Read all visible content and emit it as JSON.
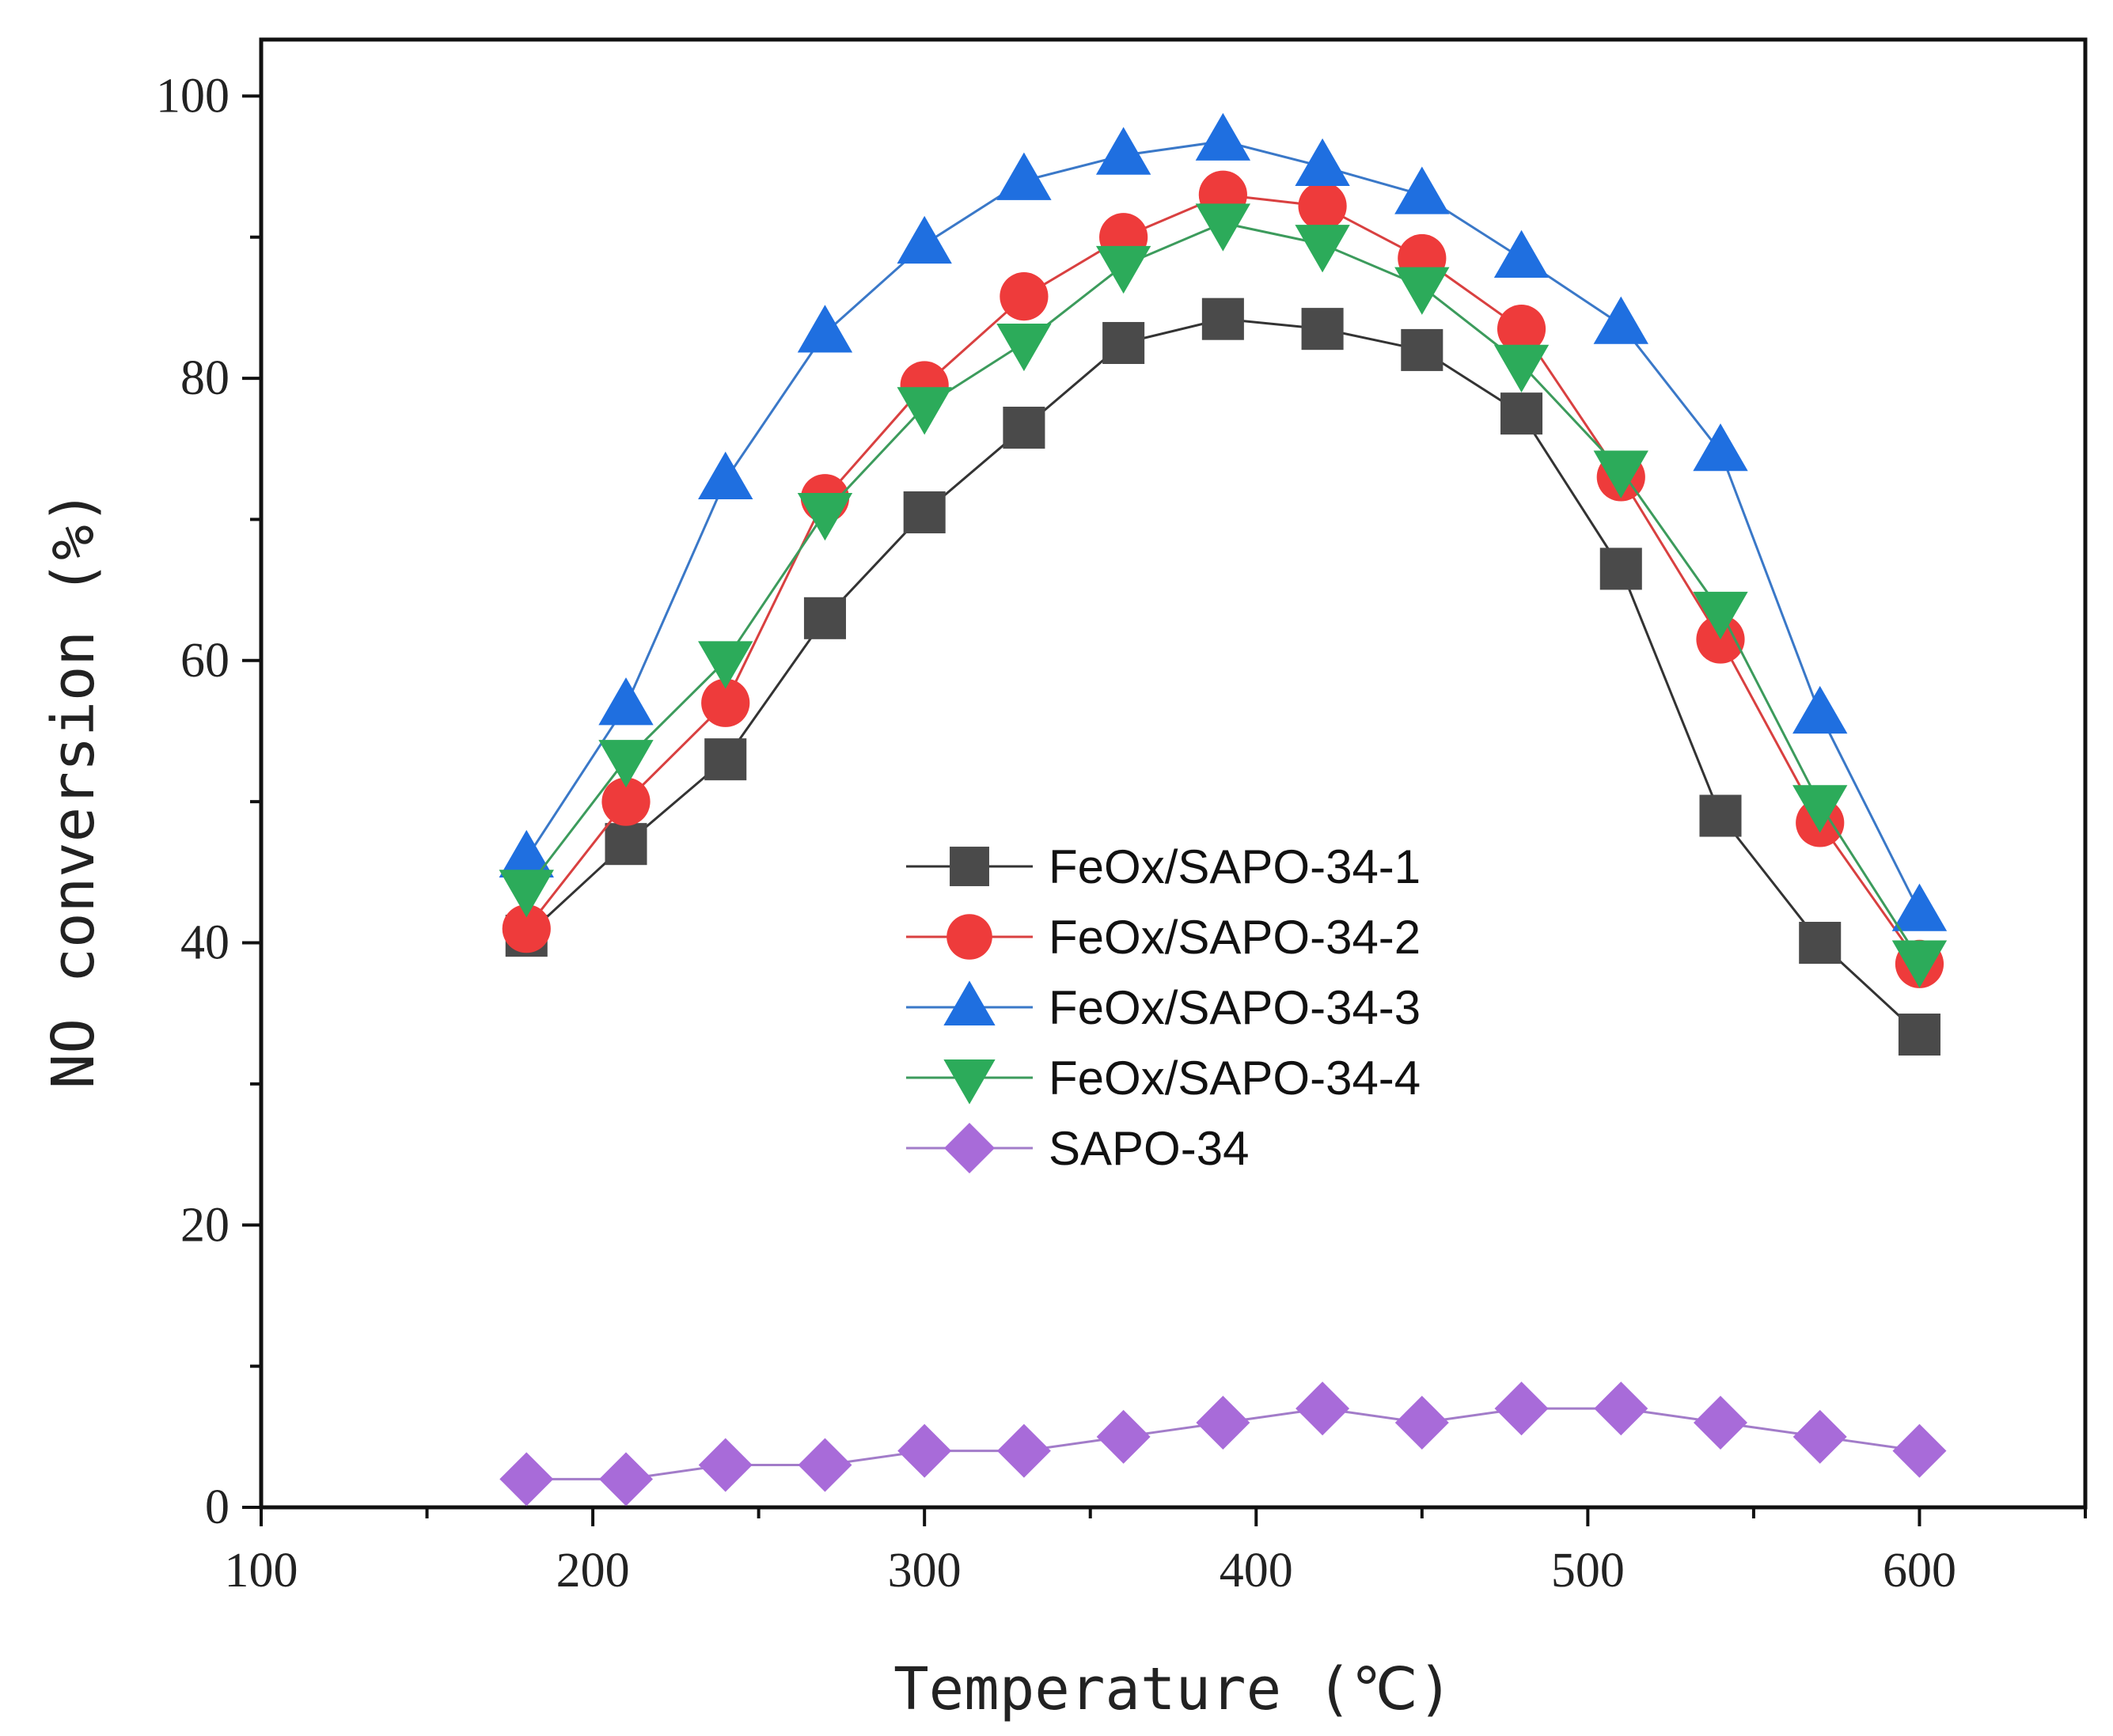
{
  "chart_data": {
    "type": "line",
    "xlabel": "Temperature (℃)",
    "ylabel": "NO conversion (%)",
    "xlim": [
      100,
      650
    ],
    "ylim": [
      0,
      104
    ],
    "xticks": [
      100,
      200,
      300,
      400,
      500,
      600
    ],
    "yticks": [
      0,
      20,
      40,
      60,
      80,
      100
    ],
    "x": [
      180,
      210,
      240,
      270,
      300,
      330,
      360,
      390,
      420,
      450,
      480,
      510,
      540,
      570,
      600
    ],
    "legend_position": "center",
    "series": [
      {
        "name": "FeOx/SAPO-34-1",
        "marker": "square",
        "marker_color": "#4a4a4a",
        "line_color": "#333333",
        "values": [
          40.5,
          47,
          53,
          63,
          70.5,
          76.5,
          82.5,
          84.2,
          83.5,
          82,
          77.5,
          66.5,
          49,
          40,
          33.5
        ]
      },
      {
        "name": "FeOx/SAPO-34-2",
        "marker": "circle",
        "marker_color": "#ee3b3b",
        "line_color": "#d94040",
        "values": [
          41,
          50,
          57,
          71.5,
          79.5,
          85.8,
          90,
          93,
          92.2,
          88.5,
          83.5,
          73,
          61.5,
          48.5,
          38.5
        ]
      },
      {
        "name": "FeOx/SAPO-34-3",
        "marker": "triangle-up",
        "marker_color": "#1f6fe0",
        "line_color": "#3a78c8",
        "values": [
          46,
          56.8,
          72.8,
          83.2,
          89.5,
          94,
          95.8,
          96.8,
          95,
          93,
          88.5,
          83.8,
          74.8,
          56.2,
          42.2
        ]
      },
      {
        "name": "FeOx/SAPO-34-4",
        "marker": "triangle-down",
        "marker_color": "#2cab5a",
        "line_color": "#3c9b5c",
        "values": [
          43.8,
          53,
          60,
          70.5,
          78,
          82.5,
          88,
          91,
          89.5,
          86.5,
          81,
          73.5,
          63.5,
          49.8,
          38.8
        ]
      },
      {
        "name": "SAPO-34",
        "marker": "diamond",
        "marker_color": "#a86bd9",
        "line_color": "#a27cc9",
        "values": [
          2,
          2,
          3,
          3,
          4,
          4,
          5,
          6,
          7,
          6,
          7,
          7,
          6,
          5,
          4
        ]
      }
    ]
  }
}
